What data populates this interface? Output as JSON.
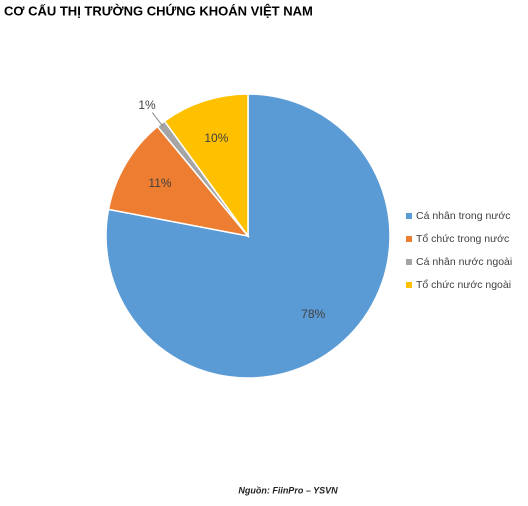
{
  "chart_data": {
    "type": "pie",
    "title": "CƠ CẤU THỊ TRƯỜNG CHỨNG KHOÁN VIỆT NAM",
    "categories": [
      "Cá nhân trong nước",
      "Tổ chức trong nước",
      "Cá nhân nước ngoài",
      "Tổ chức nước ngoài"
    ],
    "values": [
      78,
      11,
      1,
      10
    ],
    "value_labels": [
      "78%",
      "11%",
      "1%",
      "10%"
    ],
    "colors": [
      "#5b9bd5",
      "#ed7d31",
      "#a5a5a5",
      "#ffc000"
    ],
    "legend": "right",
    "source": "Nguồn: FiinPro – YSVN"
  }
}
